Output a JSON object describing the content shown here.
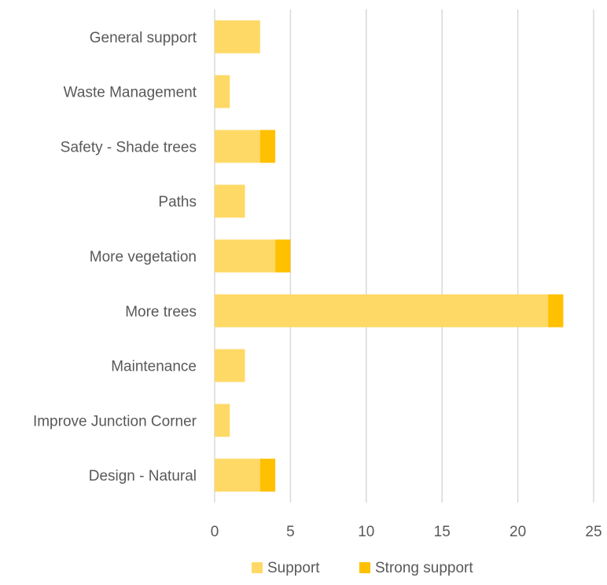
{
  "chart_data": {
    "type": "bar",
    "orientation": "horizontal",
    "stacked": true,
    "categories": [
      "General support",
      "Waste Management",
      "Safety - Shade trees",
      "Paths",
      "More vegetation",
      "More trees",
      "Maintenance",
      "Improve Junction Corner",
      "Design - Natural"
    ],
    "series": [
      {
        "name": "Support",
        "color": "#FFD966",
        "values": [
          3,
          1,
          3,
          2,
          4,
          22,
          2,
          1,
          3
        ]
      },
      {
        "name": "Strong support",
        "color": "#FFC000",
        "values": [
          0,
          0,
          1,
          0,
          1,
          1,
          0,
          0,
          1
        ]
      }
    ],
    "xlim": [
      0,
      25
    ],
    "xticks": [
      0,
      5,
      10,
      15,
      20,
      25
    ],
    "grid": true,
    "legend_position": "bottom",
    "title": "",
    "xlabel": "",
    "ylabel": ""
  }
}
